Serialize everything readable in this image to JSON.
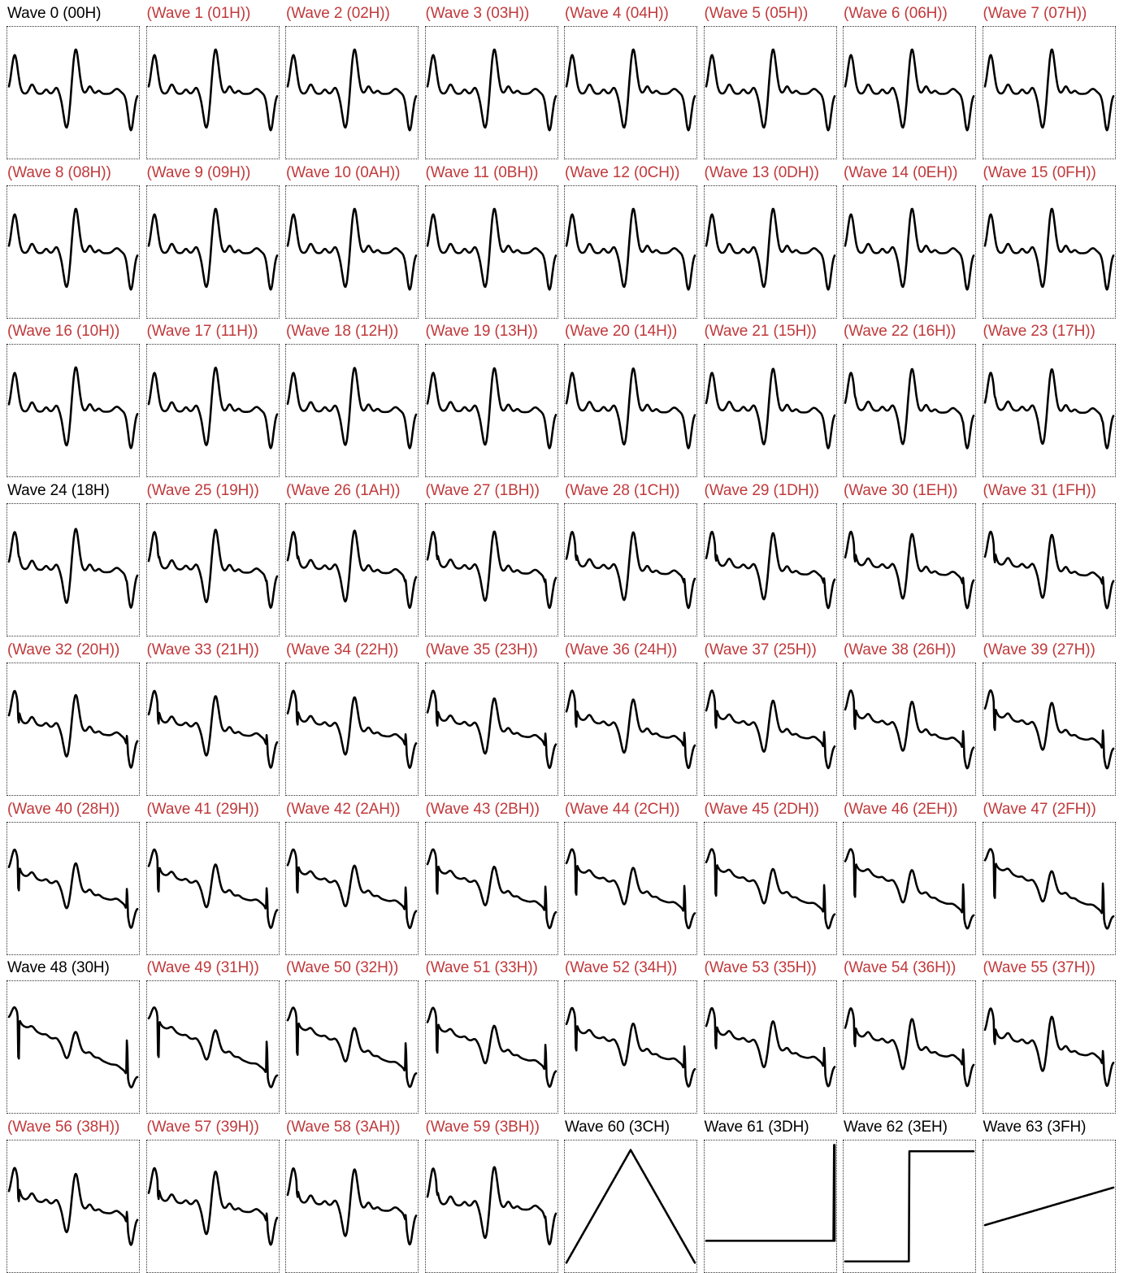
{
  "colors": {
    "highlight_title": "#000000",
    "muted_title": "#c0393b",
    "trace": "#000000",
    "frame": "#333333"
  },
  "chart_data": [
    {
      "type": "line",
      "title": "Wave 0 (00H)",
      "highlight": true,
      "shape": "voice",
      "morph": 0.0
    },
    {
      "type": "line",
      "title": "(Wave 1 (01H))",
      "highlight": false,
      "shape": "voice",
      "morph": 0.0
    },
    {
      "type": "line",
      "title": "(Wave 2 (02H))",
      "highlight": false,
      "shape": "voice",
      "morph": 0.0
    },
    {
      "type": "line",
      "title": "(Wave 3 (03H))",
      "highlight": false,
      "shape": "voice",
      "morph": 0.0
    },
    {
      "type": "line",
      "title": "(Wave 4 (04H))",
      "highlight": false,
      "shape": "voice",
      "morph": 0.0
    },
    {
      "type": "line",
      "title": "(Wave 5 (05H))",
      "highlight": false,
      "shape": "voice",
      "morph": 0.0
    },
    {
      "type": "line",
      "title": "(Wave 6 (06H))",
      "highlight": false,
      "shape": "voice",
      "morph": 0.0
    },
    {
      "type": "line",
      "title": "(Wave 7 (07H))",
      "highlight": false,
      "shape": "voice",
      "morph": 0.0
    },
    {
      "type": "line",
      "title": "(Wave 8 (08H))",
      "highlight": false,
      "shape": "voice",
      "morph": 0.0
    },
    {
      "type": "line",
      "title": "(Wave 9 (09H))",
      "highlight": false,
      "shape": "voice",
      "morph": 0.0
    },
    {
      "type": "line",
      "title": "(Wave 10 (0AH))",
      "highlight": false,
      "shape": "voice",
      "morph": 0.0
    },
    {
      "type": "line",
      "title": "(Wave 11 (0BH))",
      "highlight": false,
      "shape": "voice",
      "morph": 0.0
    },
    {
      "type": "line",
      "title": "(Wave 12 (0CH))",
      "highlight": false,
      "shape": "voice",
      "morph": 0.0
    },
    {
      "type": "line",
      "title": "(Wave 13 (0DH))",
      "highlight": false,
      "shape": "voice",
      "morph": 0.0
    },
    {
      "type": "line",
      "title": "(Wave 14 (0EH))",
      "highlight": false,
      "shape": "voice",
      "morph": 0.0
    },
    {
      "type": "line",
      "title": "(Wave 15 (0FH))",
      "highlight": false,
      "shape": "voice",
      "morph": 0.0
    },
    {
      "type": "line",
      "title": "(Wave 16 (10H))",
      "highlight": false,
      "shape": "voice",
      "morph": 0.0
    },
    {
      "type": "line",
      "title": "(Wave 17 (11H))",
      "highlight": false,
      "shape": "voice",
      "morph": 0.01
    },
    {
      "type": "line",
      "title": "(Wave 18 (12H))",
      "highlight": false,
      "shape": "voice",
      "morph": 0.02
    },
    {
      "type": "line",
      "title": "(Wave 19 (13H))",
      "highlight": false,
      "shape": "voice",
      "morph": 0.03
    },
    {
      "type": "line",
      "title": "(Wave 20 (14H))",
      "highlight": false,
      "shape": "voice",
      "morph": 0.04
    },
    {
      "type": "line",
      "title": "(Wave 21 (15H))",
      "highlight": false,
      "shape": "voice",
      "morph": 0.05
    },
    {
      "type": "line",
      "title": "(Wave 22 (16H))",
      "highlight": false,
      "shape": "voice",
      "morph": 0.06
    },
    {
      "type": "line",
      "title": "(Wave 23 (17H))",
      "highlight": false,
      "shape": "voice",
      "morph": 0.07
    },
    {
      "type": "line",
      "title": "Wave 24 (18H)",
      "highlight": true,
      "shape": "voice",
      "morph": 0.08
    },
    {
      "type": "line",
      "title": "(Wave 25 (19H))",
      "highlight": false,
      "shape": "voice",
      "morph": 0.11
    },
    {
      "type": "line",
      "title": "(Wave 26 (1AH))",
      "highlight": false,
      "shape": "voice",
      "morph": 0.14
    },
    {
      "type": "line",
      "title": "(Wave 27 (1BH))",
      "highlight": false,
      "shape": "voice",
      "morph": 0.17
    },
    {
      "type": "line",
      "title": "(Wave 28 (1CH))",
      "highlight": false,
      "shape": "voice",
      "morph": 0.2
    },
    {
      "type": "line",
      "title": "(Wave 29 (1DH))",
      "highlight": false,
      "shape": "voice",
      "morph": 0.23
    },
    {
      "type": "line",
      "title": "(Wave 30 (1EH))",
      "highlight": false,
      "shape": "voice",
      "morph": 0.26
    },
    {
      "type": "line",
      "title": "(Wave 31 (1FH))",
      "highlight": false,
      "shape": "voice",
      "morph": 0.29
    },
    {
      "type": "line",
      "title": "(Wave 32 (20H))",
      "highlight": false,
      "shape": "voice",
      "morph": 0.32
    },
    {
      "type": "line",
      "title": "(Wave 33 (21H))",
      "highlight": false,
      "shape": "voice",
      "morph": 0.36
    },
    {
      "type": "line",
      "title": "(Wave 34 (22H))",
      "highlight": false,
      "shape": "voice",
      "morph": 0.4
    },
    {
      "type": "line",
      "title": "(Wave 35 (23H))",
      "highlight": false,
      "shape": "voice",
      "morph": 0.44
    },
    {
      "type": "line",
      "title": "(Wave 36 (24H))",
      "highlight": false,
      "shape": "voice",
      "morph": 0.48
    },
    {
      "type": "line",
      "title": "(Wave 37 (25H))",
      "highlight": false,
      "shape": "voice",
      "morph": 0.52
    },
    {
      "type": "line",
      "title": "(Wave 38 (26H))",
      "highlight": false,
      "shape": "voice",
      "morph": 0.56
    },
    {
      "type": "line",
      "title": "(Wave 39 (27H))",
      "highlight": false,
      "shape": "voice",
      "morph": 0.6
    },
    {
      "type": "line",
      "title": "(Wave 40 (28H))",
      "highlight": false,
      "shape": "voice",
      "morph": 0.64
    },
    {
      "type": "line",
      "title": "(Wave 41 (29H))",
      "highlight": false,
      "shape": "voice",
      "morph": 0.68
    },
    {
      "type": "line",
      "title": "(Wave 42 (2AH))",
      "highlight": false,
      "shape": "voice",
      "morph": 0.72
    },
    {
      "type": "line",
      "title": "(Wave 43 (2BH))",
      "highlight": false,
      "shape": "voice",
      "morph": 0.76
    },
    {
      "type": "line",
      "title": "(Wave 44 (2CH))",
      "highlight": false,
      "shape": "voice",
      "morph": 0.8
    },
    {
      "type": "line",
      "title": "(Wave 45 (2DH))",
      "highlight": false,
      "shape": "voice",
      "morph": 0.84
    },
    {
      "type": "line",
      "title": "(Wave 46 (2EH))",
      "highlight": false,
      "shape": "voice",
      "morph": 0.88
    },
    {
      "type": "line",
      "title": "(Wave 47 (2FH))",
      "highlight": false,
      "shape": "voice",
      "morph": 0.92
    },
    {
      "type": "line",
      "title": "Wave 48 (30H)",
      "highlight": true,
      "shape": "voice",
      "morph": 1.0
    },
    {
      "type": "line",
      "title": "(Wave 49 (31H))",
      "highlight": false,
      "shape": "voice",
      "morph": 0.94
    },
    {
      "type": "line",
      "title": "(Wave 50 (32H))",
      "highlight": false,
      "shape": "voice",
      "morph": 0.86
    },
    {
      "type": "line",
      "title": "(Wave 51 (33H))",
      "highlight": false,
      "shape": "voice",
      "morph": 0.78
    },
    {
      "type": "line",
      "title": "(Wave 52 (34H))",
      "highlight": false,
      "shape": "voice",
      "morph": 0.7
    },
    {
      "type": "line",
      "title": "(Wave 53 (35H))",
      "highlight": false,
      "shape": "voice",
      "morph": 0.62
    },
    {
      "type": "line",
      "title": "(Wave 54 (36H))",
      "highlight": false,
      "shape": "voice",
      "morph": 0.54
    },
    {
      "type": "line",
      "title": "(Wave 55 (37H))",
      "highlight": false,
      "shape": "voice",
      "morph": 0.46
    },
    {
      "type": "line",
      "title": "(Wave 56 (38H))",
      "highlight": false,
      "shape": "voice",
      "morph": 0.38
    },
    {
      "type": "line",
      "title": "(Wave 57 (39H))",
      "highlight": false,
      "shape": "voice",
      "morph": 0.3
    },
    {
      "type": "line",
      "title": "(Wave 58 (3AH))",
      "highlight": false,
      "shape": "voice",
      "morph": 0.22
    },
    {
      "type": "line",
      "title": "(Wave 59 (3BH))",
      "highlight": false,
      "shape": "voice",
      "morph": 0.14
    },
    {
      "type": "line",
      "title": "Wave 60 (3CH)",
      "highlight": true,
      "shape": "triangle",
      "morph": 0
    },
    {
      "type": "line",
      "title": "Wave 61 (3DH)",
      "highlight": true,
      "shape": "pulse",
      "morph": 0
    },
    {
      "type": "line",
      "title": "Wave 62 (3EH)",
      "highlight": true,
      "shape": "square",
      "morph": 0
    },
    {
      "type": "line",
      "title": "Wave 63 (3FH)",
      "highlight": true,
      "shape": "ramp",
      "morph": 0
    }
  ]
}
